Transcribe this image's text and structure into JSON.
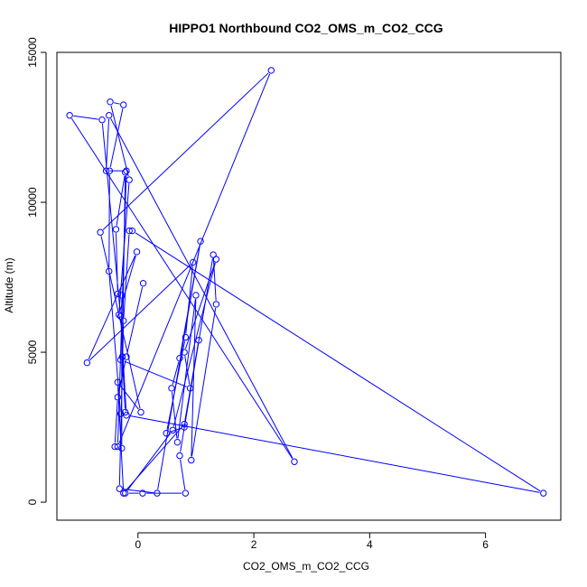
{
  "chart_data": {
    "type": "line",
    "title": "HIPPO1 Northbound CO2_OMS_m_CO2_CCG",
    "xlabel": "CO2_OMS_m_CO2_CCG",
    "ylabel": "Altitude (m)",
    "xlim": [
      -1.4,
      7.3
    ],
    "ylim": [
      -600,
      15000
    ],
    "x_ticks": [
      0,
      2,
      4,
      6
    ],
    "y_ticks": [
      0,
      5000,
      10000,
      15000
    ],
    "x_tick_labels": [
      "0",
      "2",
      "4",
      "6"
    ],
    "y_tick_labels": [
      "0",
      "5000",
      "10000",
      "15000"
    ],
    "markers": "open-circle",
    "color": "#0000ff",
    "grid": false,
    "series": [
      {
        "points": [
          [
            0.09,
            7300
          ],
          [
            -0.2,
            4850
          ],
          [
            -0.35,
            3500
          ],
          [
            -0.4,
            1850
          ],
          [
            -0.28,
            1800
          ],
          [
            -0.28,
            6900
          ],
          [
            -0.35,
            6950
          ],
          [
            -0.38,
            9100
          ],
          [
            -0.22,
            11000
          ],
          [
            -0.27,
            4850
          ],
          [
            -0.22,
            3000
          ],
          [
            -0.3,
            2950
          ],
          [
            -0.5,
            7700
          ],
          [
            -0.49,
            11050
          ],
          [
            -0.25,
            13250
          ],
          [
            -0.48,
            13350
          ],
          [
            -0.15,
            10750
          ],
          [
            -0.33,
            6250
          ],
          [
            -0.02,
            8350
          ],
          [
            -0.88,
            4650
          ],
          [
            0.95,
            8000
          ],
          [
            0.82,
            5500
          ],
          [
            0.49,
            2300
          ],
          [
            0.8,
            2500
          ],
          [
            1.3,
            8250
          ],
          [
            1.35,
            6600
          ],
          [
            0.92,
            1400
          ],
          [
            1.0,
            6900
          ],
          [
            0.68,
            2000
          ],
          [
            0.58,
            3800
          ],
          [
            0.72,
            4800
          ],
          [
            1.08,
            8700
          ],
          [
            0.33,
            300
          ],
          [
            -0.32,
            450
          ],
          [
            -0.25,
            6050
          ],
          [
            -0.15,
            9050
          ],
          [
            -0.1,
            9050
          ],
          [
            7.0,
            300
          ],
          [
            -0.2,
            2900
          ],
          [
            -0.3,
            6200
          ],
          [
            -0.62,
            12750
          ],
          [
            -1.18,
            12900
          ],
          [
            2.7,
            1350
          ],
          [
            -0.5,
            12900
          ],
          [
            -0.55,
            11050
          ],
          [
            -0.2,
            11050
          ],
          [
            -0.35,
            1850
          ],
          [
            2.3,
            14400
          ],
          [
            -0.65,
            9000
          ],
          [
            0.05,
            3000
          ],
          [
            -0.35,
            4000
          ],
          [
            -0.25,
            300
          ],
          [
            0.8,
            2600
          ],
          [
            1.05,
            5400
          ],
          [
            0.72,
            1550
          ],
          [
            0.82,
            300
          ],
          [
            0.08,
            300
          ],
          [
            -0.22,
            300
          ],
          [
            0.6,
            2400
          ],
          [
            1.35,
            8100
          ],
          [
            0.8,
            5000
          ],
          [
            0.9,
            3800
          ],
          [
            -0.3,
            4750
          ]
        ]
      }
    ]
  }
}
